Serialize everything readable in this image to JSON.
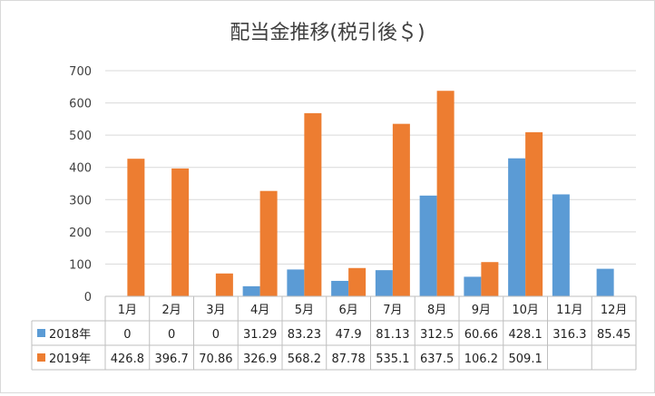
{
  "chart_data": {
    "type": "bar",
    "title": "配当金推移(税引後＄)",
    "categories": [
      "1月",
      "2月",
      "3月",
      "4月",
      "5月",
      "6月",
      "7月",
      "8月",
      "9月",
      "10月",
      "11月",
      "12月"
    ],
    "y_ticks": [
      "0",
      "100",
      "200",
      "300",
      "400",
      "500",
      "600",
      "700"
    ],
    "ylim": [
      0,
      700
    ],
    "grid": true,
    "legend": "data-table",
    "series": [
      {
        "name": "2018年",
        "color": "#5b9bd5",
        "values": [
          0,
          0,
          0,
          31.29,
          83.23,
          47.9,
          81.13,
          312.5,
          60.66,
          428.1,
          316.3,
          85.45
        ],
        "labels": [
          "0",
          "0",
          "0",
          "31.29",
          "83.23",
          "47.9",
          "81.13",
          "312.5",
          "60.66",
          "428.1",
          "316.3",
          "85.45"
        ]
      },
      {
        "name": "2019年",
        "color": "#ed7d31",
        "values": [
          426.8,
          396.7,
          70.86,
          326.9,
          568.2,
          87.78,
          535.1,
          637.5,
          106.2,
          509.1,
          null,
          null
        ],
        "labels": [
          "426.8",
          "396.7",
          "70.86",
          "326.9",
          "568.2",
          "87.78",
          "535.1",
          "637.5",
          "106.2",
          "509.1",
          "",
          ""
        ]
      }
    ]
  }
}
